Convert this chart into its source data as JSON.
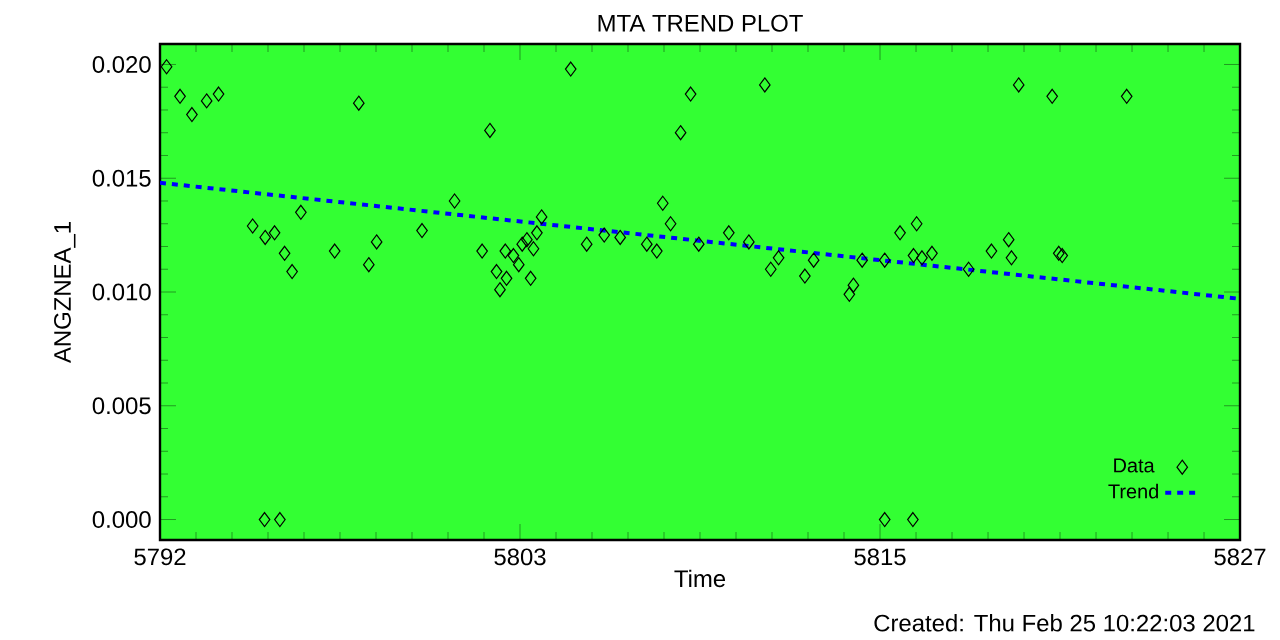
{
  "chart_data": {
    "type": "scatter",
    "title": "MTA TREND PLOT",
    "xlabel": "Time",
    "ylabel": "ANGZNEA_1",
    "annotations": [
      "Created: Thu Feb 25 10:22:03 2021"
    ],
    "xlim": [
      5792,
      5826.5
    ],
    "ylim": [
      -0.0009,
      0.0209
    ],
    "xticks": [
      5792,
      {
        "value": 5803.5,
        "label": "5803"
      },
      5815,
      {
        "value": 5826.5,
        "label": "5827"
      }
    ],
    "yticks": [
      {
        "value": 0,
        "label": "0.000"
      },
      {
        "value": 0.005,
        "label": "0.005"
      },
      {
        "value": 0.01,
        "label": "0.010"
      },
      {
        "value": 0.015,
        "label": "0.015"
      },
      {
        "value": 0.02,
        "label": "0.020"
      }
    ],
    "legend": "bottom right",
    "series": [
      {
        "name": "Data",
        "marker": "diamond",
        "color": "#000000",
        "x": [
          5792.21,
          5792.64,
          5793.02,
          5793.49,
          5793.87,
          5798.35,
          5802.54,
          5794.96,
          5795.36,
          5795.66,
          5795.98,
          5796.22,
          5796.5,
          5797.58,
          5798.67,
          5798.92,
          5800.37,
          5801.41,
          5802.29,
          5795.34,
          5795.83,
          5805.12,
          5808.95,
          5811.32,
          5808.63,
          5808.06,
          5808.31,
          5803.03,
          5803.29,
          5802.75,
          5803.07,
          5802.86,
          5803.57,
          5803.72,
          5803.93,
          5804.04,
          5804.19,
          5803.46,
          5803.84,
          5805.63,
          5806.19,
          5806.7,
          5807.55,
          5807.87,
          5809.21,
          5810.17,
          5810.81,
          5811.76,
          5811.51,
          5812.6,
          5812.88,
          5814.15,
          5814.02,
          5814.43,
          5815.15,
          5815.64,
          5816.17,
          5816.07,
          5816.34,
          5816.66,
          5817.83,
          5818.56,
          5819.11,
          5819.2,
          5820.71,
          5820.82,
          5819.43,
          5820.5,
          5822.88,
          5815.15,
          5816.05
        ],
        "values": [
          0.0199,
          0.0186,
          0.0178,
          0.0184,
          0.0187,
          0.0183,
          0.0171,
          0.0129,
          0.0124,
          0.0126,
          0.0117,
          0.0109,
          0.0135,
          0.0118,
          0.0112,
          0.0122,
          0.0127,
          0.014,
          0.0118,
          0.0,
          0.0,
          0.0198,
          0.0187,
          0.0191,
          0.017,
          0.0139,
          0.013,
          0.0118,
          0.0116,
          0.0109,
          0.0106,
          0.0101,
          0.0121,
          0.0123,
          0.0119,
          0.0126,
          0.0133,
          0.0112,
          0.0106,
          0.0121,
          0.0125,
          0.0124,
          0.0121,
          0.0118,
          0.0121,
          0.0126,
          0.0122,
          0.0115,
          0.011,
          0.0107,
          0.0114,
          0.0103,
          0.0099,
          0.0114,
          0.0114,
          0.0126,
          0.013,
          0.0116,
          0.0115,
          0.0117,
          0.011,
          0.0118,
          0.0123,
          0.0115,
          0.0117,
          0.0116,
          0.0191,
          0.0186,
          0.0186,
          0.0,
          0.0
        ]
      },
      {
        "name": "Trend",
        "type": "line",
        "line_style": "dashed",
        "marker": "none",
        "color": "#0000ff",
        "x": [
          5792,
          5826.5
        ],
        "values": [
          0.0148,
          0.0097
        ]
      }
    ]
  }
}
